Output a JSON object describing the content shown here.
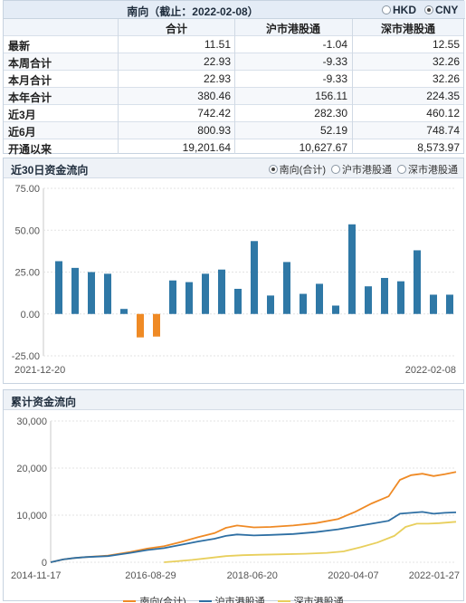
{
  "summary": {
    "title": "南向（截止：2022-02-08）",
    "currency": {
      "hkd": "HKD",
      "cny": "CNY",
      "selected": "CNY"
    },
    "columns": [
      "合计",
      "沪市港股通",
      "深市港股通"
    ],
    "rows": [
      {
        "label": "最新",
        "values": [
          "11.51",
          "-1.04",
          "12.55"
        ]
      },
      {
        "label": "本周合计",
        "values": [
          "22.93",
          "-9.33",
          "32.26"
        ]
      },
      {
        "label": "本月合计",
        "values": [
          "22.93",
          "-9.33",
          "32.26"
        ]
      },
      {
        "label": "本年合计",
        "values": [
          "380.46",
          "156.11",
          "224.35"
        ]
      },
      {
        "label": "近3月",
        "values": [
          "742.42",
          "282.30",
          "460.12"
        ]
      },
      {
        "label": "近6月",
        "values": [
          "800.93",
          "52.19",
          "748.74"
        ]
      },
      {
        "label": "开通以来",
        "values": [
          "19,201.64",
          "10,627.67",
          "8,573.97"
        ]
      }
    ]
  },
  "flow30": {
    "title": "近30日资金流向",
    "options": [
      "南向(合计)",
      "沪市港股通",
      "深市港股通"
    ],
    "selected": 0
  },
  "cumulative": {
    "title": "累计资金流向"
  },
  "colors": {
    "bar_pos": "#2f78a6",
    "bar_neg": "#ef8a25",
    "line_total": "#ef8a25",
    "line_sh": "#2e6fa3",
    "line_sz": "#e8cf5c"
  },
  "chart_data": [
    {
      "type": "bar",
      "title": "近30日资金流向",
      "x_tick_labels": [
        "2021-12-20",
        "2022-02-08"
      ],
      "yticks": [
        "75.00",
        "50.00",
        "25.00",
        "0.00",
        "-25.00"
      ],
      "ylim": [
        -25,
        75
      ],
      "grid": true,
      "values": [
        31.5,
        27.5,
        25.0,
        24.0,
        3.0,
        -14.0,
        -13.5,
        20.0,
        19.0,
        24.0,
        26.5,
        15.0,
        43.5,
        11.0,
        31.0,
        12.0,
        18.0,
        5.0,
        53.5,
        16.5,
        21.5,
        19.5,
        38.0,
        11.5,
        11.5
      ]
    },
    {
      "type": "line",
      "title": "累计资金流向",
      "x_tick_labels": [
        "2014-11-17",
        "2016-08-29",
        "2018-06-20",
        "2020-04-07",
        "2022-01-27"
      ],
      "yticks": [
        "30,000",
        "20,000",
        "10,000",
        "0"
      ],
      "ylim": [
        0,
        30000
      ],
      "xrange": [
        2014.88,
        2022.1
      ],
      "grid": true,
      "legend": "bottom",
      "series": [
        {
          "name": "南向(合计)",
          "x": [
            2014.88,
            2015.1,
            2015.3,
            2015.5,
            2015.9,
            2016.3,
            2016.6,
            2016.9,
            2017.2,
            2017.5,
            2017.8,
            2018.0,
            2018.2,
            2018.5,
            2018.8,
            2019.2,
            2019.6,
            2020.0,
            2020.3,
            2020.6,
            2020.9,
            2021.1,
            2021.3,
            2021.5,
            2021.7,
            2021.9,
            2022.1
          ],
          "values": [
            0,
            600,
            900,
            1100,
            1400,
            2200,
            2900,
            3400,
            4300,
            5300,
            6200,
            7300,
            7800,
            7400,
            7500,
            7800,
            8300,
            9200,
            10700,
            12500,
            14000,
            17500,
            18500,
            18800,
            18300,
            18700,
            19200
          ]
        },
        {
          "name": "沪市港股通",
          "x": [
            2014.88,
            2015.1,
            2015.3,
            2015.5,
            2015.9,
            2016.3,
            2016.6,
            2016.9,
            2017.2,
            2017.5,
            2017.8,
            2018.0,
            2018.2,
            2018.5,
            2018.8,
            2019.2,
            2019.6,
            2020.0,
            2020.3,
            2020.6,
            2020.9,
            2021.1,
            2021.3,
            2021.5,
            2021.7,
            2021.9,
            2022.1
          ],
          "values": [
            0,
            600,
            900,
            1100,
            1300,
            2000,
            2600,
            3000,
            3700,
            4400,
            5000,
            5600,
            5900,
            5700,
            5800,
            6000,
            6400,
            7000,
            7600,
            8200,
            8800,
            10300,
            10500,
            10700,
            10300,
            10500,
            10600
          ]
        },
        {
          "name": "深市港股通",
          "x": [
            2016.9,
            2017.1,
            2017.4,
            2017.7,
            2018.0,
            2018.3,
            2018.6,
            2019.0,
            2019.4,
            2019.8,
            2020.1,
            2020.4,
            2020.7,
            2021.0,
            2021.2,
            2021.4,
            2021.6,
            2021.8,
            2022.1
          ],
          "values": [
            0,
            200,
            500,
            900,
            1300,
            1500,
            1600,
            1700,
            1800,
            2000,
            2300,
            3200,
            4200,
            5600,
            7500,
            8200,
            8200,
            8300,
            8600
          ]
        }
      ]
    }
  ]
}
